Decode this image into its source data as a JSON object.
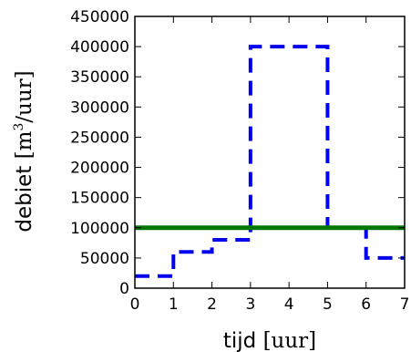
{
  "chart_data": {
    "type": "line",
    "title": "",
    "xlabel": {
      "word": "tijd",
      "unit": "[uur]"
    },
    "ylabel": {
      "word": "debiet",
      "unit_open": "[m",
      "unit_sup": "3",
      "unit_close": "/uur]"
    },
    "xlim": [
      0,
      7
    ],
    "ylim": [
      0,
      450000
    ],
    "xticks": [
      "0",
      "1",
      "2",
      "3",
      "4",
      "5",
      "6",
      "7"
    ],
    "yticks": [
      "0",
      "50000",
      "100000",
      "150000",
      "200000",
      "250000",
      "300000",
      "350000",
      "400000",
      "450000"
    ],
    "grid": false,
    "legend": "none",
    "series": [
      {
        "style": "dashed-step",
        "color": "#0000ee",
        "x": [
          0,
          1,
          1,
          2,
          2,
          3,
          3,
          5,
          5,
          6,
          6,
          7
        ],
        "y": [
          20000,
          20000,
          60000,
          60000,
          80000,
          80000,
          400000,
          400000,
          100000,
          100000,
          50000,
          50000
        ]
      },
      {
        "style": "solid",
        "color": "#007700",
        "x": [
          0,
          7
        ],
        "y": [
          100000,
          100000
        ]
      }
    ]
  }
}
